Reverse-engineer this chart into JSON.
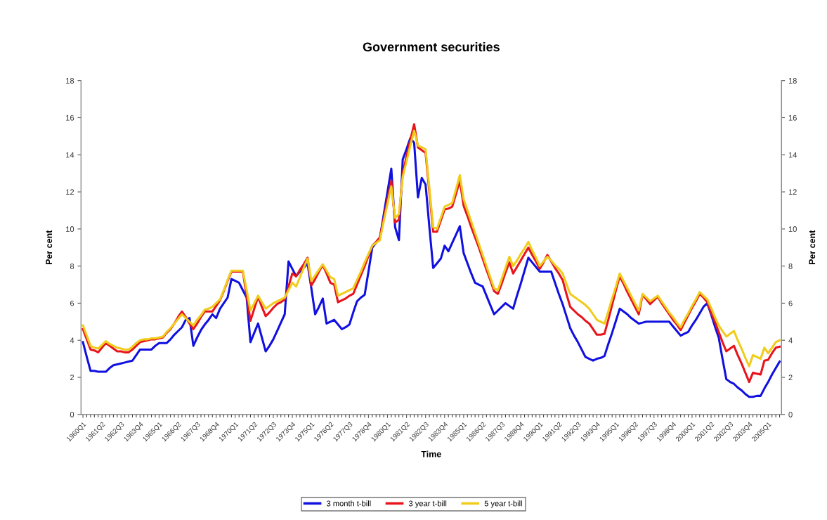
{
  "chart_data": {
    "type": "line",
    "title": "Government securities",
    "xlabel": "Time",
    "ylabel": "Per cent",
    "y2label": "Per cent",
    "ylim": [
      0,
      18
    ],
    "yticks": [
      0,
      2,
      4,
      6,
      8,
      10,
      12,
      14,
      16,
      18
    ],
    "y2lim": [
      0,
      18
    ],
    "y2ticks": [
      0,
      2,
      4,
      6,
      8,
      10,
      12,
      14,
      16,
      18
    ],
    "categories": [
      "1960Q1",
      null,
      null,
      null,
      null,
      "1961Q2",
      null,
      null,
      null,
      null,
      "1962Q3",
      null,
      null,
      null,
      null,
      "1963Q4",
      null,
      null,
      null,
      null,
      "1965Q1",
      null,
      null,
      null,
      null,
      "1966Q2",
      null,
      null,
      null,
      null,
      "1967Q3",
      null,
      null,
      null,
      null,
      "1968Q4",
      null,
      null,
      null,
      null,
      "1970Q1",
      null,
      null,
      null,
      null,
      "1971Q2",
      null,
      null,
      null,
      null,
      "1972Q3",
      null,
      null,
      null,
      null,
      "1973Q4",
      null,
      null,
      null,
      null,
      "1975Q1",
      null,
      null,
      null,
      null,
      "1976Q2",
      null,
      null,
      null,
      null,
      "1977Q3",
      null,
      null,
      null,
      null,
      "1978Q4",
      null,
      null,
      null,
      null,
      "1980Q1",
      null,
      null,
      null,
      null,
      "1981Q2",
      null,
      null,
      null,
      null,
      "1982Q3",
      null,
      null,
      null,
      null,
      "1983Q4",
      null,
      null,
      null,
      null,
      "1985Q1",
      null,
      null,
      null,
      null,
      "1986Q2",
      null,
      null,
      null,
      null,
      "1987Q3",
      null,
      null,
      null,
      null,
      "1988Q4",
      null,
      null,
      null,
      null,
      "1990Q1",
      null,
      null,
      null,
      null,
      "1991Q2",
      null,
      null,
      null,
      null,
      "1992Q3",
      null,
      null,
      null,
      null,
      "1993Q4",
      null,
      null,
      null,
      null,
      "1995Q1",
      null,
      null,
      null,
      null,
      "1996Q2",
      null,
      null,
      null,
      null,
      "1997Q3",
      null,
      null,
      null,
      null,
      "1998Q4",
      null,
      null,
      null,
      null,
      "2000Q1",
      null,
      null,
      null,
      null,
      "2001Q2",
      null,
      null,
      null,
      null,
      "2002Q3",
      null,
      null,
      null,
      null,
      "2003Q4",
      null,
      null,
      null,
      null,
      "2005Q1",
      null,
      null,
      null
    ],
    "legend": "bottom",
    "grid": false,
    "marker": "none",
    "line_style": "solid",
    "series": [
      {
        "name": "3 month t-bill",
        "color": "#1010e0",
        "values": [
          3.9,
          3.1,
          2.35,
          2.35,
          2.3,
          2.3,
          2.3,
          2.5,
          2.65,
          2.7,
          2.75,
          2.8,
          2.85,
          2.9,
          3.2,
          3.5,
          3.5,
          3.5,
          3.5,
          3.7,
          3.85,
          3.85,
          3.85,
          4.05,
          4.3,
          4.5,
          4.7,
          5.1,
          5.2,
          3.7,
          4.15,
          4.55,
          4.85,
          5.1,
          5.4,
          5.2,
          5.7,
          6.0,
          6.3,
          7.3,
          7.2,
          7.1,
          6.7,
          6.3,
          3.9,
          4.4,
          4.9,
          4.15,
          3.4,
          3.7,
          4.05,
          4.5,
          4.95,
          5.4,
          8.25,
          7.85,
          7.45,
          7.7,
          7.9,
          8.15,
          6.8,
          5.4,
          5.8,
          6.25,
          4.9,
          5.0,
          5.1,
          4.85,
          4.6,
          4.7,
          4.85,
          5.5,
          6.1,
          6.3,
          6.45,
          7.7,
          9.0,
          9.25,
          9.5,
          10.75,
          12.0,
          13.25,
          10.1,
          9.4,
          13.75,
          14.3,
          14.9,
          14.65,
          11.7,
          12.75,
          12.4,
          10.1,
          7.9,
          8.15,
          8.4,
          9.1,
          8.8,
          9.25,
          9.7,
          10.15,
          8.7,
          8.15,
          7.6,
          7.1,
          7.0,
          6.9,
          6.4,
          5.9,
          5.4,
          5.6,
          5.8,
          6.0,
          5.85,
          5.7,
          6.4,
          7.05,
          7.75,
          8.45,
          8.2,
          7.95,
          7.7,
          7.7,
          7.7,
          7.7,
          7.1,
          6.5,
          5.95,
          5.3,
          4.65,
          4.25,
          3.9,
          3.5,
          3.1,
          3.0,
          2.9,
          3.0,
          3.05,
          3.15,
          3.8,
          4.4,
          5.05,
          5.7,
          5.55,
          5.4,
          5.2,
          5.05,
          4.9,
          4.95,
          5.0,
          5.0,
          5.0,
          5.0,
          5.0,
          5.0,
          5.0,
          4.75,
          4.5,
          4.25,
          4.35,
          4.45,
          4.8,
          5.1,
          5.45,
          5.8,
          6.0,
          5.4,
          4.75,
          4.15,
          3.0,
          1.9,
          1.75,
          1.65,
          1.45,
          1.3,
          1.1,
          0.95,
          0.95,
          1.0,
          1.0,
          1.4,
          1.75,
          2.15,
          2.5,
          2.85
        ]
      },
      {
        "name": "3 year t-bill",
        "color": "#e8141c",
        "values": [
          4.6,
          4.05,
          3.5,
          3.45,
          3.35,
          3.6,
          3.85,
          3.7,
          3.55,
          3.4,
          3.4,
          3.35,
          3.35,
          3.5,
          3.7,
          3.9,
          3.95,
          4.0,
          4.05,
          4.05,
          4.1,
          4.15,
          4.4,
          4.6,
          4.9,
          5.25,
          5.55,
          5.25,
          4.9,
          4.6,
          4.9,
          5.25,
          5.55,
          5.55,
          5.55,
          5.85,
          6.15,
          6.65,
          7.2,
          7.7,
          7.7,
          7.7,
          7.7,
          6.4,
          5.05,
          5.7,
          6.35,
          5.8,
          5.3,
          5.5,
          5.75,
          5.95,
          6.05,
          6.2,
          6.9,
          7.6,
          7.45,
          7.8,
          8.1,
          8.45,
          6.95,
          7.3,
          7.7,
          8.05,
          7.6,
          7.1,
          7.0,
          6.05,
          6.15,
          6.25,
          6.4,
          6.5,
          7.0,
          7.5,
          8.0,
          8.55,
          9.1,
          9.3,
          9.55,
          10.55,
          11.6,
          12.6,
          10.35,
          10.5,
          13.0,
          13.9,
          14.8,
          15.65,
          14.4,
          14.25,
          14.1,
          12.0,
          9.85,
          9.85,
          10.45,
          11.05,
          11.1,
          11.2,
          11.9,
          12.6,
          11.25,
          10.7,
          10.1,
          9.55,
          9.0,
          8.4,
          7.8,
          7.25,
          6.65,
          6.5,
          7.05,
          7.65,
          8.2,
          7.6,
          7.95,
          8.3,
          8.65,
          9.0,
          8.6,
          8.25,
          7.85,
          8.2,
          8.6,
          8.25,
          7.9,
          7.6,
          7.25,
          6.5,
          5.8,
          5.6,
          5.4,
          5.25,
          5.05,
          4.9,
          4.6,
          4.3,
          4.3,
          4.35,
          5.1,
          5.9,
          6.7,
          7.45,
          7.05,
          6.6,
          6.2,
          5.8,
          5.4,
          6.45,
          6.2,
          5.95,
          6.15,
          6.35,
          6.0,
          5.7,
          5.4,
          5.1,
          4.85,
          4.55,
          4.95,
          5.35,
          5.75,
          6.1,
          6.5,
          6.3,
          6.05,
          5.5,
          5.0,
          4.45,
          3.9,
          3.4,
          3.55,
          3.7,
          3.2,
          2.75,
          2.25,
          1.75,
          2.25,
          2.2,
          2.15,
          2.9,
          2.95,
          3.3,
          3.6,
          3.65
        ]
      },
      {
        "name": "5 year t-bill",
        "color": "#f0cc1c",
        "values": [
          4.8,
          4.25,
          3.7,
          3.6,
          3.55,
          3.75,
          3.95,
          3.8,
          3.7,
          3.6,
          3.55,
          3.5,
          3.5,
          3.65,
          3.85,
          4.0,
          4.05,
          4.05,
          4.1,
          4.1,
          4.15,
          4.2,
          4.45,
          4.65,
          4.9,
          5.15,
          5.4,
          5.2,
          5.0,
          4.8,
          5.1,
          5.35,
          5.65,
          5.7,
          5.8,
          6.0,
          6.2,
          6.7,
          7.25,
          7.75,
          7.75,
          7.75,
          7.75,
          6.7,
          5.6,
          6.0,
          6.4,
          6.05,
          5.7,
          5.85,
          6.0,
          6.1,
          6.2,
          6.3,
          6.7,
          7.1,
          6.9,
          7.4,
          7.9,
          8.4,
          7.2,
          7.5,
          7.8,
          8.1,
          7.75,
          7.4,
          7.3,
          6.4,
          6.5,
          6.6,
          6.7,
          6.8,
          7.25,
          7.7,
          8.2,
          8.65,
          9.1,
          9.25,
          9.4,
          10.4,
          11.35,
          12.3,
          10.6,
          10.8,
          12.8,
          13.65,
          14.5,
          15.3,
          14.5,
          14.4,
          14.3,
          12.2,
          10.1,
          10.0,
          10.6,
          11.2,
          11.3,
          11.4,
          12.15,
          12.9,
          11.6,
          11.0,
          10.4,
          9.8,
          9.2,
          8.6,
          8.0,
          7.4,
          6.8,
          6.7,
          7.3,
          7.9,
          8.5,
          8.0,
          8.3,
          8.65,
          8.95,
          9.3,
          8.85,
          8.45,
          8.0,
          8.25,
          8.5,
          8.3,
          8.05,
          7.85,
          7.6,
          7.05,
          6.5,
          6.35,
          6.2,
          6.05,
          5.9,
          5.7,
          5.4,
          5.1,
          5.0,
          4.9,
          5.55,
          6.25,
          6.9,
          7.6,
          7.2,
          6.8,
          6.4,
          6.0,
          5.6,
          6.5,
          6.3,
          6.1,
          6.25,
          6.4,
          6.1,
          5.8,
          5.5,
          5.25,
          4.95,
          4.7,
          5.1,
          5.45,
          5.85,
          6.2,
          6.6,
          6.4,
          6.2,
          5.75,
          5.25,
          4.8,
          4.5,
          4.2,
          4.35,
          4.5,
          4.0,
          3.55,
          3.05,
          2.6,
          3.2,
          3.1,
          3.0,
          3.6,
          3.3,
          3.6,
          3.9,
          4.0
        ]
      }
    ]
  }
}
